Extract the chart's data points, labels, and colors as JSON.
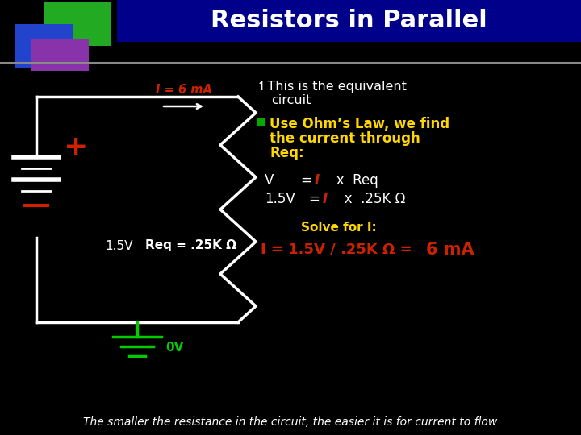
{
  "bg_color": "#000000",
  "title_bg_color": "#00008B",
  "title_text": "Resistors in Parallel",
  "title_color": "#FFFFFF",
  "title_fontsize": 22,
  "white_color": "#FFFFFF",
  "red_color": "#CC2200",
  "yellow_color": "#FFD700",
  "green_color": "#00CC00",
  "gray_color": "#888888",
  "bullet_color": "#00AA00",
  "sq1_color": "#22AA22",
  "sq2_color": "#2244CC",
  "sq3_color": "#8833AA",
  "footer": "The smaller the resistance in the circuit, the easier it is for current to flow",
  "footer_color": "#FFFFFF",
  "gnd_label": "0V"
}
